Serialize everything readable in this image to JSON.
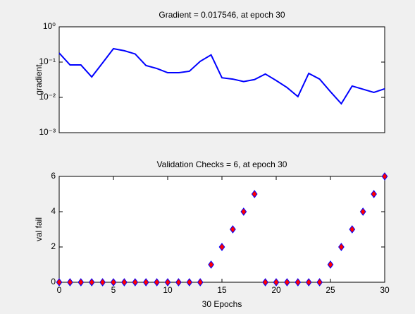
{
  "chart_data": [
    {
      "type": "line",
      "title": "Gradient = 0.017546, at epoch 30",
      "ylabel": "gradient",
      "log_y": true,
      "color": "#0000ff",
      "x": [
        0,
        1,
        2,
        3,
        4,
        5,
        6,
        7,
        8,
        9,
        10,
        11,
        12,
        13,
        14,
        15,
        16,
        17,
        18,
        19,
        20,
        21,
        22,
        23,
        24,
        25,
        26,
        27,
        28,
        29,
        30
      ],
      "values": [
        0.18,
        0.083,
        0.083,
        0.038,
        0.095,
        0.24,
        0.21,
        0.17,
        0.08,
        0.066,
        0.05,
        0.05,
        0.055,
        0.105,
        0.16,
        0.036,
        0.033,
        0.028,
        0.032,
        0.046,
        0.03,
        0.019,
        0.0105,
        0.048,
        0.033,
        0.0145,
        0.0066,
        0.021,
        0.017,
        0.0138,
        0.017546
      ],
      "xlim": [
        0,
        30
      ],
      "ylim": [
        0.001,
        1
      ],
      "yticks": [
        {
          "value": 0.001,
          "label": "10⁻³"
        },
        {
          "value": 0.01,
          "label": "10⁻²"
        },
        {
          "value": 0.1,
          "label": "10⁻¹"
        },
        {
          "value": 1,
          "label": "10⁰"
        }
      ]
    },
    {
      "type": "scatter",
      "title": "Validation Checks = 6, at epoch 30",
      "ylabel": "val fail",
      "xlabel": "30 Epochs",
      "color": "#ff0000",
      "edge_color": "#0000ff",
      "x": [
        0,
        1,
        2,
        3,
        4,
        5,
        6,
        7,
        8,
        9,
        10,
        11,
        12,
        13,
        14,
        15,
        16,
        17,
        18,
        19,
        20,
        21,
        22,
        23,
        24,
        25,
        26,
        27,
        28,
        29,
        30
      ],
      "values": [
        0,
        0,
        0,
        0,
        0,
        0,
        0,
        0,
        0,
        0,
        0,
        0,
        0,
        0,
        1,
        2,
        3,
        4,
        5,
        0,
        0,
        0,
        0,
        0,
        0,
        1,
        2,
        3,
        4,
        5,
        6
      ],
      "xlim": [
        0,
        30
      ],
      "ylim": [
        0,
        6
      ],
      "xticks": [
        0,
        5,
        10,
        15,
        20,
        25,
        30
      ],
      "yticks": [
        0,
        2,
        4,
        6
      ]
    }
  ]
}
